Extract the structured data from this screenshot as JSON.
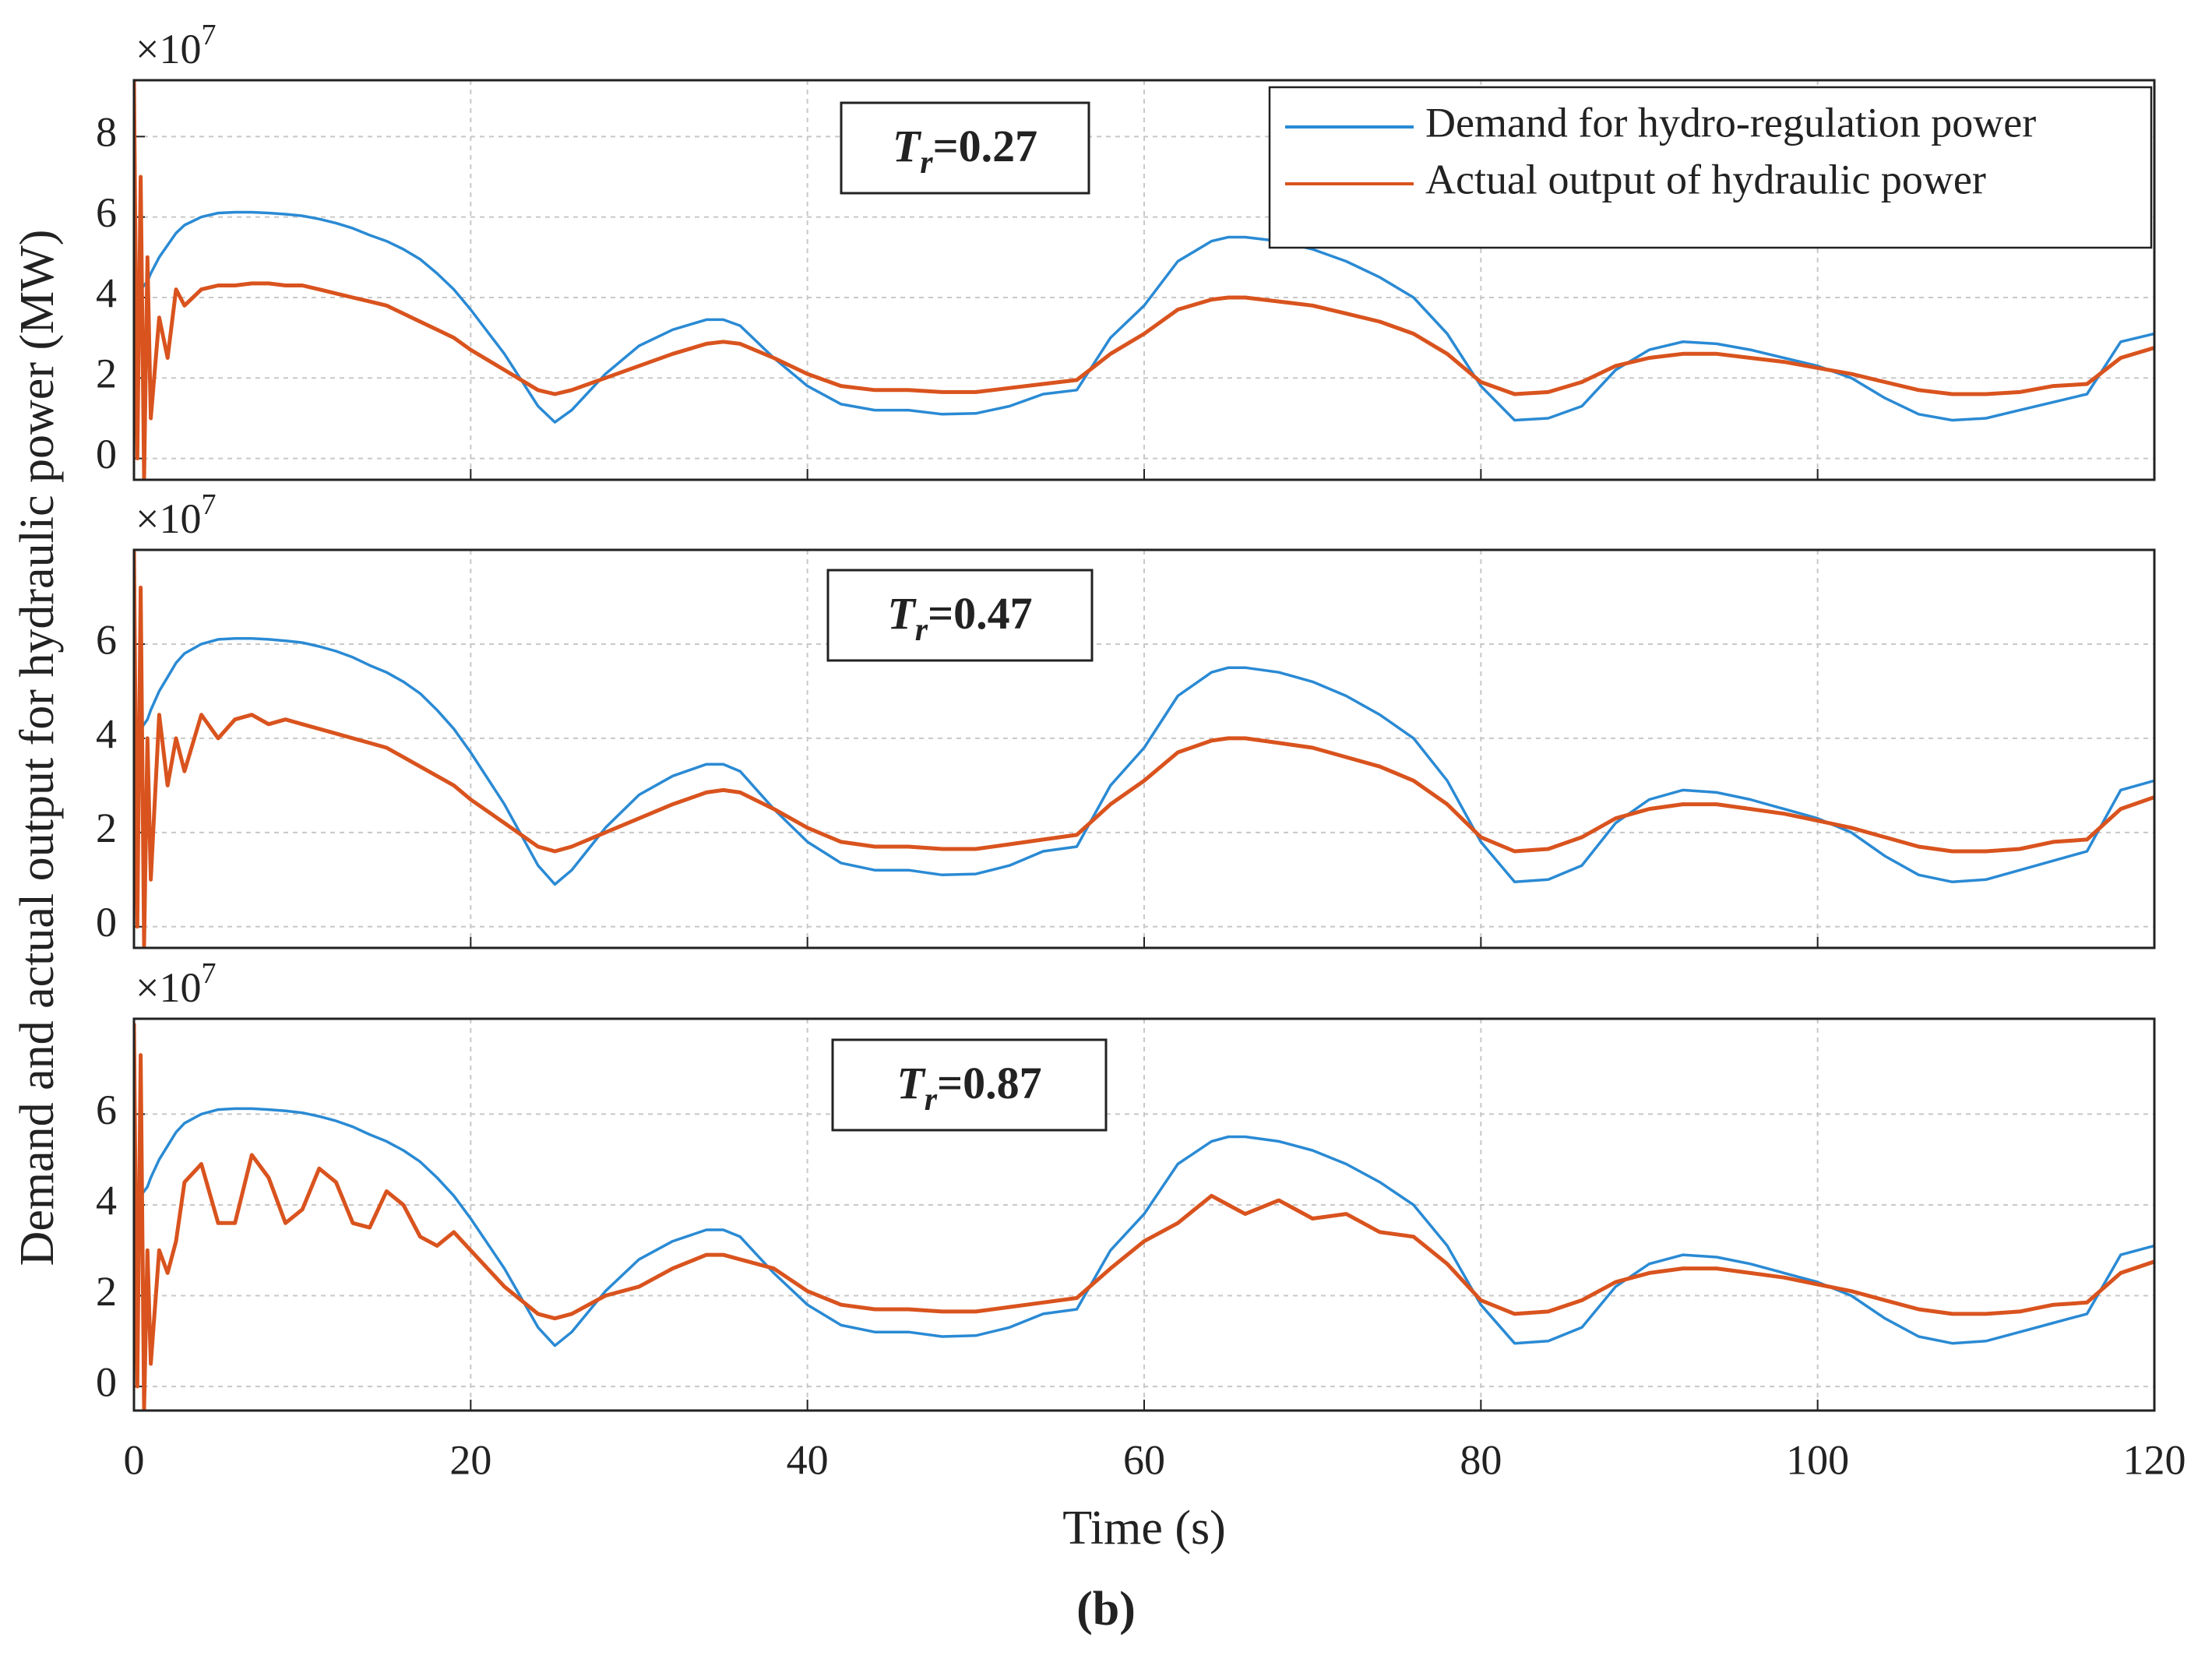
{
  "figure": {
    "ylabel": "Demand and actual output for hydraulic power (MW)",
    "xlabel": "Time (s)",
    "caption": "(b)"
  },
  "chart_data": [
    {
      "type": "line",
      "exponent": {
        "base": "×10",
        "power": "7"
      },
      "annotation": {
        "symbol": "T",
        "subscript": "r",
        "text": "=0.27"
      },
      "legend": "upper right",
      "grid": true,
      "show_xtick_labels": false,
      "xlim": [
        0,
        120
      ],
      "xticks": [
        0,
        20,
        40,
        60,
        80,
        100,
        120
      ],
      "ylim": [
        -0.53,
        9.4
      ],
      "yticks": [
        0,
        2,
        4,
        6,
        8
      ],
      "x": [
        0,
        0.2,
        0.4,
        0.6,
        0.8,
        1,
        1.5,
        2,
        2.5,
        3,
        4,
        5,
        6,
        7,
        8,
        9,
        10,
        11,
        12,
        13,
        14,
        15,
        16,
        17,
        18,
        19,
        20,
        22,
        24,
        25,
        26,
        28,
        30,
        32,
        34,
        35,
        36,
        38,
        40,
        42,
        44,
        46,
        48,
        50,
        52,
        54,
        56,
        58,
        60,
        62,
        64,
        65,
        66,
        68,
        70,
        72,
        74,
        76,
        78,
        80,
        82,
        84,
        86,
        88,
        90,
        92,
        94,
        96,
        98,
        100,
        102,
        104,
        106,
        108,
        110,
        112,
        114,
        116,
        118,
        120
      ],
      "series": [
        {
          "name": "Demand for hydro-regulation power",
          "color": "#2a8ad4",
          "values": [
            3.8,
            4.0,
            4.2,
            4.3,
            4.4,
            4.6,
            5.0,
            5.3,
            5.6,
            5.8,
            6.0,
            6.1,
            6.12,
            6.12,
            6.1,
            6.07,
            6.03,
            5.95,
            5.85,
            5.72,
            5.55,
            5.4,
            5.2,
            4.95,
            4.6,
            4.2,
            3.7,
            2.6,
            1.3,
            0.9,
            1.2,
            2.1,
            2.8,
            3.2,
            3.45,
            3.45,
            3.3,
            2.5,
            1.8,
            1.35,
            1.2,
            1.2,
            1.1,
            1.12,
            1.3,
            1.6,
            1.7,
            3.0,
            3.8,
            4.9,
            5.4,
            5.5,
            5.5,
            5.4,
            5.2,
            4.9,
            4.5,
            4.0,
            3.1,
            1.8,
            0.95,
            1.0,
            1.3,
            2.2,
            2.7,
            2.9,
            2.85,
            2.7,
            2.5,
            2.3,
            2.0,
            1.5,
            1.1,
            0.95,
            1.0,
            1.2,
            1.4,
            1.6,
            2.9,
            3.1
          ]
        },
        {
          "name": "Actual output of hydraulic power",
          "color": "#d9531e",
          "values": [
            9.4,
            0,
            7,
            -0.5,
            5,
            1,
            3.5,
            2.5,
            4.2,
            3.8,
            4.2,
            4.3,
            4.3,
            4.35,
            4.35,
            4.3,
            4.3,
            4.2,
            4.1,
            4.0,
            3.9,
            3.8,
            3.6,
            3.4,
            3.2,
            3.0,
            2.7,
            2.2,
            1.7,
            1.6,
            1.7,
            2.0,
            2.3,
            2.6,
            2.85,
            2.9,
            2.85,
            2.5,
            2.1,
            1.8,
            1.7,
            1.7,
            1.65,
            1.65,
            1.75,
            1.85,
            1.95,
            2.6,
            3.1,
            3.7,
            3.95,
            4.0,
            4.0,
            3.9,
            3.8,
            3.6,
            3.4,
            3.1,
            2.6,
            1.9,
            1.6,
            1.65,
            1.9,
            2.3,
            2.5,
            2.6,
            2.6,
            2.5,
            2.4,
            2.25,
            2.1,
            1.9,
            1.7,
            1.6,
            1.6,
            1.65,
            1.8,
            1.85,
            2.5,
            2.75
          ]
        }
      ]
    },
    {
      "type": "line",
      "exponent": {
        "base": "×10",
        "power": "7"
      },
      "annotation": {
        "symbol": "T",
        "subscript": "r",
        "text": "=0.47"
      },
      "grid": true,
      "show_xtick_labels": false,
      "xlim": [
        0,
        120
      ],
      "xticks": [
        0,
        20,
        40,
        60,
        80,
        100,
        120
      ],
      "ylim": [
        -0.45,
        8.0
      ],
      "yticks": [
        0,
        2,
        4,
        6
      ],
      "x": [
        0,
        0.2,
        0.4,
        0.6,
        0.8,
        1,
        1.5,
        2,
        2.5,
        3,
        4,
        5,
        6,
        7,
        8,
        9,
        10,
        11,
        12,
        13,
        14,
        15,
        16,
        17,
        18,
        19,
        20,
        22,
        24,
        25,
        26,
        28,
        30,
        32,
        34,
        35,
        36,
        38,
        40,
        42,
        44,
        46,
        48,
        50,
        52,
        54,
        56,
        58,
        60,
        62,
        64,
        65,
        66,
        68,
        70,
        72,
        74,
        76,
        78,
        80,
        82,
        84,
        86,
        88,
        90,
        92,
        94,
        96,
        98,
        100,
        102,
        104,
        106,
        108,
        110,
        112,
        114,
        116,
        118,
        120
      ],
      "series": [
        {
          "color": "#2a8ad4",
          "values": [
            3.8,
            4.0,
            4.2,
            4.3,
            4.4,
            4.6,
            5.0,
            5.3,
            5.6,
            5.8,
            6.0,
            6.1,
            6.12,
            6.12,
            6.1,
            6.07,
            6.03,
            5.95,
            5.85,
            5.72,
            5.55,
            5.4,
            5.2,
            4.95,
            4.6,
            4.2,
            3.7,
            2.6,
            1.3,
            0.9,
            1.2,
            2.1,
            2.8,
            3.2,
            3.45,
            3.45,
            3.3,
            2.5,
            1.8,
            1.35,
            1.2,
            1.2,
            1.1,
            1.12,
            1.3,
            1.6,
            1.7,
            3.0,
            3.8,
            4.9,
            5.4,
            5.5,
            5.5,
            5.4,
            5.2,
            4.9,
            4.5,
            4.0,
            3.1,
            1.8,
            0.95,
            1.0,
            1.3,
            2.2,
            2.7,
            2.9,
            2.85,
            2.7,
            2.5,
            2.3,
            2.0,
            1.5,
            1.1,
            0.95,
            1.0,
            1.2,
            1.4,
            1.6,
            2.9,
            3.1
          ]
        },
        {
          "color": "#d9531e",
          "values": [
            8,
            0,
            7.2,
            -0.4,
            4,
            1,
            4.5,
            3,
            4,
            3.3,
            4.5,
            4.0,
            4.4,
            4.5,
            4.3,
            4.4,
            4.3,
            4.2,
            4.1,
            4.0,
            3.9,
            3.8,
            3.6,
            3.4,
            3.2,
            3.0,
            2.7,
            2.2,
            1.7,
            1.6,
            1.7,
            2.0,
            2.3,
            2.6,
            2.85,
            2.9,
            2.85,
            2.5,
            2.1,
            1.8,
            1.7,
            1.7,
            1.65,
            1.65,
            1.75,
            1.85,
            1.95,
            2.6,
            3.1,
            3.7,
            3.95,
            4.0,
            4.0,
            3.9,
            3.8,
            3.6,
            3.4,
            3.1,
            2.6,
            1.9,
            1.6,
            1.65,
            1.9,
            2.3,
            2.5,
            2.6,
            2.6,
            2.5,
            2.4,
            2.25,
            2.1,
            1.9,
            1.7,
            1.6,
            1.6,
            1.65,
            1.8,
            1.85,
            2.5,
            2.75
          ]
        }
      ]
    },
    {
      "type": "line",
      "exponent": {
        "base": "×10",
        "power": "7"
      },
      "annotation": {
        "symbol": "T",
        "subscript": "r",
        "text": "=0.87"
      },
      "grid": true,
      "show_xtick_labels": true,
      "xlim": [
        0,
        120
      ],
      "xticks": [
        0,
        20,
        40,
        60,
        80,
        100,
        120
      ],
      "ylim": [
        -0.53,
        8.1
      ],
      "yticks": [
        0,
        2,
        4,
        6
      ],
      "x": [
        0,
        0.2,
        0.4,
        0.6,
        0.8,
        1,
        1.5,
        2,
        2.5,
        3,
        4,
        5,
        6,
        7,
        8,
        9,
        10,
        11,
        12,
        13,
        14,
        15,
        16,
        17,
        18,
        19,
        20,
        22,
        24,
        25,
        26,
        28,
        30,
        32,
        34,
        35,
        36,
        38,
        40,
        42,
        44,
        46,
        48,
        50,
        52,
        54,
        56,
        58,
        60,
        62,
        64,
        65,
        66,
        68,
        70,
        72,
        74,
        76,
        78,
        80,
        82,
        84,
        86,
        88,
        90,
        92,
        94,
        96,
        98,
        100,
        102,
        104,
        106,
        108,
        110,
        112,
        114,
        116,
        118,
        120
      ],
      "series": [
        {
          "color": "#2a8ad4",
          "values": [
            3.8,
            4.0,
            4.2,
            4.3,
            4.4,
            4.6,
            5.0,
            5.3,
            5.6,
            5.8,
            6.0,
            6.1,
            6.12,
            6.12,
            6.1,
            6.07,
            6.03,
            5.95,
            5.85,
            5.72,
            5.55,
            5.4,
            5.2,
            4.95,
            4.6,
            4.2,
            3.7,
            2.6,
            1.3,
            0.9,
            1.2,
            2.1,
            2.8,
            3.2,
            3.45,
            3.45,
            3.3,
            2.5,
            1.8,
            1.35,
            1.2,
            1.2,
            1.1,
            1.12,
            1.3,
            1.6,
            1.7,
            3.0,
            3.8,
            4.9,
            5.4,
            5.5,
            5.5,
            5.4,
            5.2,
            4.9,
            4.5,
            4.0,
            3.1,
            1.8,
            0.95,
            1.0,
            1.3,
            2.2,
            2.7,
            2.9,
            2.85,
            2.7,
            2.5,
            2.3,
            2.0,
            1.5,
            1.1,
            0.95,
            1.0,
            1.2,
            1.4,
            1.6,
            2.9,
            3.1
          ]
        },
        {
          "color": "#d9531e",
          "values": [
            8,
            0,
            7.3,
            -0.5,
            3,
            0.5,
            3,
            2.5,
            3.2,
            4.5,
            4.9,
            3.6,
            3.6,
            5.1,
            4.6,
            3.6,
            3.9,
            4.8,
            4.5,
            3.6,
            3.5,
            4.3,
            4.0,
            3.3,
            3.1,
            3.4,
            3.0,
            2.2,
            1.6,
            1.5,
            1.6,
            2.0,
            2.2,
            2.6,
            2.9,
            2.9,
            2.8,
            2.6,
            2.1,
            1.8,
            1.7,
            1.7,
            1.65,
            1.65,
            1.75,
            1.85,
            1.95,
            2.6,
            3.2,
            3.6,
            4.2,
            4.0,
            3.8,
            4.1,
            3.7,
            3.8,
            3.4,
            3.3,
            2.7,
            1.9,
            1.6,
            1.65,
            1.9,
            2.3,
            2.5,
            2.6,
            2.6,
            2.5,
            2.4,
            2.25,
            2.1,
            1.9,
            1.7,
            1.6,
            1.6,
            1.65,
            1.8,
            1.85,
            2.5,
            2.75
          ]
        }
      ]
    }
  ]
}
